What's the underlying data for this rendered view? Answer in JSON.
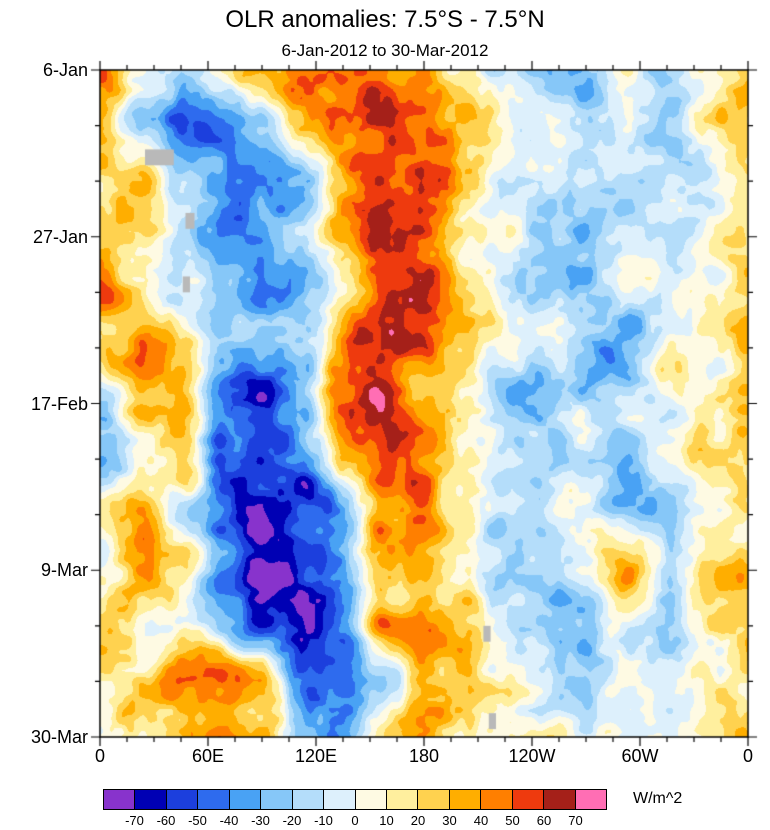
{
  "chart_data": {
    "type": "heatmap",
    "title": "OLR anomalies: 7.5°S - 7.5°N",
    "subtitle": "6-Jan-2012 to 30-Mar-2012",
    "units": "W/m^2",
    "x_tick_labels": [
      "0",
      "60E",
      "120E",
      "180",
      "120W",
      "60W",
      "0"
    ],
    "x_tick_degrees": [
      0,
      60,
      120,
      180,
      240,
      300,
      360
    ],
    "y_tick_labels": [
      "6-Jan",
      "27-Jan",
      "17-Feb",
      "9-Mar",
      "30-Mar"
    ],
    "y_tick_days": [
      0,
      21,
      42,
      63,
      84
    ],
    "time_span_days": 84,
    "lon_range": [
      0,
      360
    ],
    "legend_position": "bottom",
    "grid_on": false,
    "levels": [
      -70,
      -60,
      -50,
      -40,
      -30,
      -20,
      -10,
      0,
      10,
      20,
      30,
      40,
      50,
      60,
      70
    ],
    "colorbar_tick_labels": [
      "-70",
      "-60",
      "-50",
      "-40",
      "-30",
      "-20",
      "-10",
      "0",
      "10",
      "20",
      "30",
      "40",
      "50",
      "60",
      "70"
    ],
    "colors": [
      "#8833CC",
      "#0000B4",
      "#1C3FDD",
      "#2E6BEE",
      "#49A2F4",
      "#86C7F8",
      "#B4DDFA",
      "#DDF0FC",
      "#FEFAE3",
      "#FFEF9E",
      "#FFD24F",
      "#FFAE00",
      "#FF7F00",
      "#EE3A0E",
      "#A52019",
      "#FF6EB4"
    ],
    "missing_color": "#B9B9B9",
    "grid": {
      "lon_step_deg": 22.5,
      "time_step_days": 7,
      "values": [
        [
          30,
          -20,
          -30,
          10,
          25,
          40,
          35,
          45,
          40,
          15,
          5,
          -15,
          -25,
          5,
          -20,
          5,
          25
        ],
        [
          30,
          -10,
          -35,
          -30,
          -25,
          20,
          45,
          50,
          35,
          15,
          0,
          -15,
          -30,
          -5,
          -15,
          5,
          20
        ],
        [
          15,
          25,
          -30,
          -40,
          -30,
          -20,
          30,
          50,
          40,
          20,
          0,
          -10,
          -20,
          -25,
          0,
          -15,
          10
        ],
        [
          25,
          10,
          -25,
          -45,
          -35,
          -30,
          25,
          55,
          45,
          20,
          5,
          -15,
          -25,
          -15,
          5,
          0,
          20
        ],
        [
          40,
          25,
          -5,
          -30,
          -40,
          -25,
          15,
          50,
          45,
          25,
          5,
          -20,
          -30,
          -15,
          0,
          10,
          25
        ],
        [
          30,
          40,
          20,
          -25,
          -35,
          -30,
          25,
          55,
          50,
          25,
          5,
          -10,
          -25,
          -20,
          5,
          0,
          20
        ],
        [
          -25,
          25,
          30,
          -45,
          -50,
          -30,
          45,
          60,
          40,
          20,
          -15,
          -25,
          -15,
          0,
          -20,
          10,
          25
        ],
        [
          -30,
          15,
          30,
          -60,
          -55,
          -35,
          35,
          50,
          40,
          15,
          -25,
          -30,
          -15,
          -20,
          0,
          20,
          15
        ],
        [
          25,
          30,
          -20,
          -50,
          -60,
          -50,
          -30,
          30,
          40,
          15,
          -25,
          -20,
          0,
          -15,
          -25,
          5,
          20
        ],
        [
          10,
          40,
          25,
          -35,
          -65,
          -55,
          -40,
          25,
          35,
          20,
          -15,
          -25,
          0,
          20,
          -15,
          25,
          30
        ],
        [
          30,
          25,
          15,
          -30,
          -45,
          -55,
          -35,
          45,
          35,
          25,
          0,
          -25,
          -30,
          5,
          -15,
          15,
          25
        ],
        [
          15,
          30,
          45,
          50,
          35,
          -35,
          -45,
          -25,
          35,
          30,
          10,
          -15,
          -25,
          0,
          -10,
          5,
          15
        ],
        [
          5,
          30,
          35,
          45,
          30,
          -30,
          -40,
          25,
          40,
          30,
          15,
          0,
          -15,
          5,
          0,
          10,
          20
        ]
      ]
    },
    "missing_patches": [
      {
        "deg": 33,
        "day": 11,
        "w_deg": 16,
        "h_days": 2
      },
      {
        "deg": 50,
        "day": 19,
        "w_deg": 5,
        "h_days": 2
      },
      {
        "deg": 48,
        "day": 27,
        "w_deg": 4,
        "h_days": 2
      },
      {
        "deg": 215,
        "day": 71,
        "w_deg": 4,
        "h_days": 2
      },
      {
        "deg": 218,
        "day": 82,
        "w_deg": 4,
        "h_days": 2
      }
    ]
  }
}
